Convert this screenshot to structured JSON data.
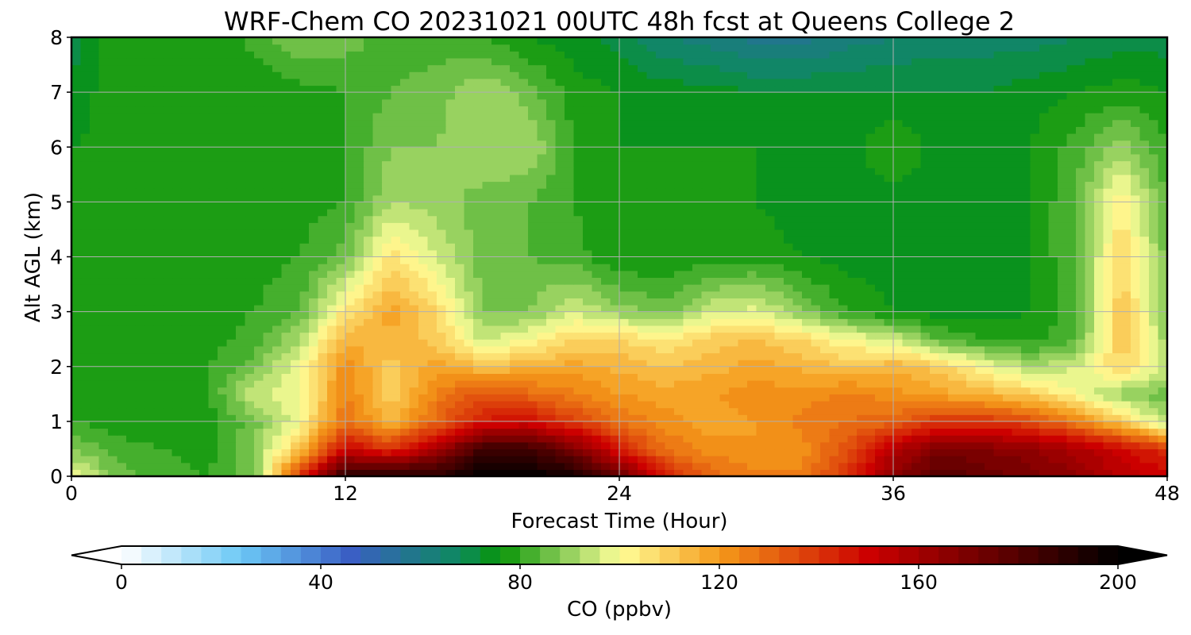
{
  "chart_data": {
    "type": "heatmap",
    "title": "WRF-Chem CO  20231021 00UTC 48h fcst at Queens College 2",
    "xlabel": "Forecast Time (Hour)",
    "ylabel": "Alt AGL (km)",
    "xlim": [
      0,
      48
    ],
    "ylim": [
      0,
      8
    ],
    "xticks": [
      0,
      12,
      24,
      36,
      48
    ],
    "yticks": [
      0,
      1,
      2,
      3,
      4,
      5,
      6,
      7,
      8
    ],
    "grid": true,
    "x": [
      0,
      2,
      4,
      6,
      8,
      10,
      12,
      14,
      16,
      18,
      20,
      22,
      24,
      26,
      28,
      30,
      32,
      34,
      36,
      38,
      40,
      42,
      44,
      46,
      48
    ],
    "y": [
      0,
      0.5,
      1,
      1.5,
      2,
      2.5,
      3,
      4,
      5,
      6,
      7,
      8
    ],
    "z": [
      [
        100,
        86,
        82,
        80,
        86,
        140,
        190,
        195,
        190,
        200,
        200,
        195,
        175,
        145,
        130,
        125,
        125,
        140,
        165,
        180,
        175,
        170,
        165,
        155,
        150
      ],
      [
        88,
        82,
        80,
        78,
        88,
        112,
        150,
        140,
        160,
        185,
        185,
        170,
        145,
        128,
        122,
        120,
        122,
        135,
        155,
        170,
        168,
        165,
        158,
        150,
        140
      ],
      [
        80,
        78,
        76,
        78,
        86,
        100,
        128,
        115,
        130,
        145,
        148,
        138,
        128,
        122,
        118,
        120,
        125,
        128,
        130,
        140,
        140,
        135,
        125,
        110,
        92
      ],
      [
        78,
        76,
        76,
        80,
        95,
        98,
        125,
        108,
        125,
        135,
        130,
        125,
        120,
        118,
        120,
        122,
        122,
        125,
        122,
        118,
        115,
        110,
        100,
        90,
        85
      ],
      [
        76,
        76,
        76,
        80,
        86,
        100,
        122,
        110,
        118,
        112,
        115,
        118,
        115,
        112,
        114,
        118,
        115,
        112,
        115,
        110,
        100,
        92,
        96,
        108,
        95
      ],
      [
        78,
        76,
        76,
        78,
        82,
        92,
        115,
        115,
        110,
        95,
        100,
        108,
        108,
        104,
        110,
        112,
        108,
        100,
        96,
        84,
        80,
        78,
        84,
        112,
        90
      ],
      [
        76,
        76,
        76,
        78,
        80,
        84,
        105,
        118,
        108,
        88,
        88,
        96,
        90,
        86,
        95,
        98,
        88,
        80,
        76,
        74,
        74,
        76,
        82,
        112,
        88
      ],
      [
        78,
        76,
        76,
        80,
        78,
        80,
        86,
        106,
        96,
        86,
        84,
        82,
        76,
        76,
        78,
        78,
        76,
        74,
        74,
        74,
        74,
        76,
        84,
        108,
        86
      ],
      [
        76,
        78,
        76,
        76,
        78,
        78,
        80,
        92,
        90,
        86,
        84,
        80,
        76,
        76,
        76,
        76,
        74,
        74,
        74,
        74,
        74,
        76,
        84,
        104,
        84
      ],
      [
        76,
        78,
        76,
        76,
        76,
        78,
        80,
        88,
        88,
        92,
        92,
        80,
        76,
        76,
        76,
        76,
        74,
        74,
        80,
        74,
        74,
        76,
        82,
        90,
        80
      ],
      [
        72,
        80,
        76,
        76,
        76,
        78,
        80,
        84,
        86,
        92,
        86,
        78,
        76,
        74,
        74,
        72,
        72,
        72,
        72,
        72,
        72,
        74,
        76,
        78,
        76
      ],
      [
        70,
        80,
        76,
        76,
        82,
        88,
        86,
        82,
        82,
        80,
        76,
        74,
        70,
        64,
        62,
        58,
        58,
        62,
        64,
        66,
        66,
        66,
        68,
        70,
        70
      ]
    ],
    "colorbar": {
      "label": "CO  (ppbv)",
      "min": 0,
      "max": 200,
      "step": 4,
      "ticks": [
        0,
        40,
        80,
        120,
        160,
        200
      ],
      "extend": "both",
      "colors": [
        {
          "v": 0,
          "c": "#ffffff"
        },
        {
          "v": 24,
          "c": "#6cc8f5"
        },
        {
          "v": 46,
          "c": "#3a5fc4"
        },
        {
          "v": 68,
          "c": "#0d8a5e"
        },
        {
          "v": 76,
          "c": "#079407"
        },
        {
          "v": 90,
          "c": "#98d260"
        },
        {
          "v": 100,
          "c": "#ffff99"
        },
        {
          "v": 120,
          "c": "#f59a1a"
        },
        {
          "v": 150,
          "c": "#cc0000"
        },
        {
          "v": 200,
          "c": "#000000"
        }
      ]
    }
  }
}
